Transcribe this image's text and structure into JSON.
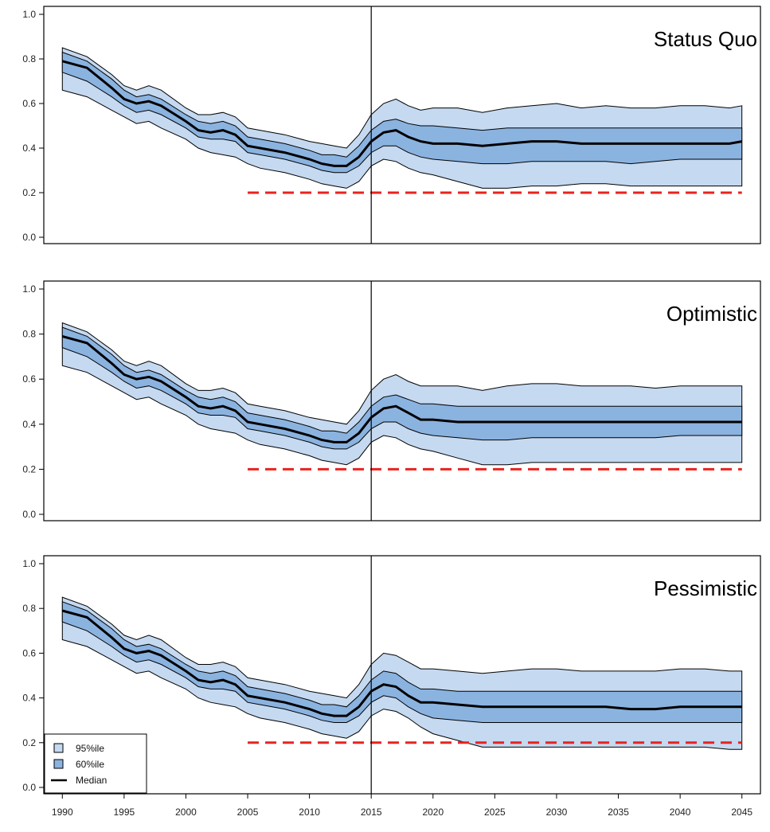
{
  "chart_data": [
    {
      "type": "area",
      "title": "Status Quo",
      "ylim": [
        0,
        1.0
      ],
      "xlim": [
        1988.5,
        2046.5
      ],
      "yticks": [
        "0.0",
        "0.2",
        "0.4",
        "0.6",
        "0.8",
        "1.0"
      ],
      "reference_year": 2015,
      "target": {
        "value": 0.2,
        "from": 2005,
        "to": 2045
      },
      "x": [
        1990,
        1992,
        1994,
        1995,
        1996,
        1997,
        1998,
        2000,
        2001,
        2002,
        2003,
        2004,
        2005,
        2006,
        2008,
        2010,
        2011,
        2012,
        2013,
        2014,
        2015,
        2016,
        2017,
        2018,
        2019,
        2020,
        2022,
        2024,
        2026,
        2028,
        2030,
        2032,
        2034,
        2036,
        2038,
        2040,
        2042,
        2044,
        2045
      ],
      "series": [
        {
          "name": "95%ile",
          "low": [
            0.66,
            0.63,
            0.57,
            0.54,
            0.51,
            0.52,
            0.49,
            0.44,
            0.4,
            0.38,
            0.37,
            0.36,
            0.33,
            0.31,
            0.29,
            0.26,
            0.24,
            0.23,
            0.22,
            0.25,
            0.32,
            0.35,
            0.34,
            0.31,
            0.29,
            0.28,
            0.25,
            0.22,
            0.22,
            0.23,
            0.23,
            0.24,
            0.24,
            0.23,
            0.23,
            0.23,
            0.23,
            0.23,
            0.23
          ],
          "high": [
            0.85,
            0.81,
            0.73,
            0.68,
            0.66,
            0.68,
            0.66,
            0.58,
            0.55,
            0.55,
            0.56,
            0.54,
            0.49,
            0.48,
            0.46,
            0.43,
            0.42,
            0.41,
            0.4,
            0.46,
            0.55,
            0.6,
            0.62,
            0.59,
            0.57,
            0.58,
            0.58,
            0.56,
            0.58,
            0.59,
            0.6,
            0.58,
            0.59,
            0.58,
            0.58,
            0.59,
            0.59,
            0.58,
            0.59
          ]
        },
        {
          "name": "60%ile",
          "low": [
            0.74,
            0.7,
            0.63,
            0.59,
            0.56,
            0.57,
            0.55,
            0.49,
            0.45,
            0.44,
            0.44,
            0.43,
            0.38,
            0.37,
            0.35,
            0.32,
            0.3,
            0.29,
            0.29,
            0.32,
            0.38,
            0.41,
            0.41,
            0.38,
            0.36,
            0.35,
            0.34,
            0.33,
            0.33,
            0.34,
            0.34,
            0.34,
            0.34,
            0.33,
            0.34,
            0.35,
            0.35,
            0.35,
            0.35
          ]
        },
        {
          "name": "Median",
          "values": [
            0.79,
            0.76,
            0.67,
            0.62,
            0.6,
            0.61,
            0.59,
            0.52,
            0.48,
            0.47,
            0.48,
            0.46,
            0.41,
            0.4,
            0.38,
            0.35,
            0.33,
            0.32,
            0.32,
            0.36,
            0.43,
            0.47,
            0.48,
            0.45,
            0.43,
            0.42,
            0.42,
            0.41,
            0.42,
            0.43,
            0.43,
            0.42,
            0.42,
            0.42,
            0.42,
            0.42,
            0.42,
            0.42,
            0.43
          ]
        }
      ],
      "band60_high": [
        0.83,
        0.79,
        0.71,
        0.66,
        0.63,
        0.64,
        0.62,
        0.55,
        0.52,
        0.51,
        0.52,
        0.5,
        0.45,
        0.44,
        0.42,
        0.39,
        0.37,
        0.37,
        0.36,
        0.41,
        0.48,
        0.52,
        0.53,
        0.51,
        0.5,
        0.5,
        0.49,
        0.48,
        0.49,
        0.49,
        0.49,
        0.49,
        0.49,
        0.49,
        0.49,
        0.49,
        0.49,
        0.49,
        0.49
      ]
    },
    {
      "type": "area",
      "title": "Optimistic",
      "ylim": [
        0,
        1.0
      ],
      "xlim": [
        1988.5,
        2046.5
      ],
      "yticks": [
        "0.0",
        "0.2",
        "0.4",
        "0.6",
        "0.8",
        "1.0"
      ],
      "reference_year": 2015,
      "target": {
        "value": 0.2,
        "from": 2005,
        "to": 2045
      },
      "x": [
        1990,
        1992,
        1994,
        1995,
        1996,
        1997,
        1998,
        2000,
        2001,
        2002,
        2003,
        2004,
        2005,
        2006,
        2008,
        2010,
        2011,
        2012,
        2013,
        2014,
        2015,
        2016,
        2017,
        2018,
        2019,
        2020,
        2022,
        2024,
        2026,
        2028,
        2030,
        2032,
        2034,
        2036,
        2038,
        2040,
        2042,
        2044,
        2045
      ],
      "series": [
        {
          "name": "95%ile",
          "low": [
            0.66,
            0.63,
            0.57,
            0.54,
            0.51,
            0.52,
            0.49,
            0.44,
            0.4,
            0.38,
            0.37,
            0.36,
            0.33,
            0.31,
            0.29,
            0.26,
            0.24,
            0.23,
            0.22,
            0.25,
            0.32,
            0.35,
            0.34,
            0.31,
            0.29,
            0.28,
            0.25,
            0.22,
            0.22,
            0.23,
            0.23,
            0.23,
            0.23,
            0.23,
            0.23,
            0.23,
            0.23,
            0.23,
            0.23
          ],
          "high": [
            0.85,
            0.81,
            0.73,
            0.68,
            0.66,
            0.68,
            0.66,
            0.58,
            0.55,
            0.55,
            0.56,
            0.54,
            0.49,
            0.48,
            0.46,
            0.43,
            0.42,
            0.41,
            0.4,
            0.46,
            0.55,
            0.6,
            0.62,
            0.59,
            0.57,
            0.57,
            0.57,
            0.55,
            0.57,
            0.58,
            0.58,
            0.57,
            0.57,
            0.57,
            0.56,
            0.57,
            0.57,
            0.57,
            0.57
          ]
        },
        {
          "name": "60%ile",
          "low": [
            0.74,
            0.7,
            0.63,
            0.59,
            0.56,
            0.57,
            0.55,
            0.49,
            0.45,
            0.44,
            0.44,
            0.43,
            0.38,
            0.37,
            0.35,
            0.32,
            0.3,
            0.29,
            0.29,
            0.32,
            0.38,
            0.41,
            0.41,
            0.38,
            0.36,
            0.35,
            0.34,
            0.33,
            0.33,
            0.34,
            0.34,
            0.34,
            0.34,
            0.34,
            0.34,
            0.35,
            0.35,
            0.35,
            0.35
          ]
        },
        {
          "name": "Median",
          "values": [
            0.79,
            0.76,
            0.67,
            0.62,
            0.6,
            0.61,
            0.59,
            0.52,
            0.48,
            0.47,
            0.48,
            0.46,
            0.41,
            0.4,
            0.38,
            0.35,
            0.33,
            0.32,
            0.32,
            0.36,
            0.43,
            0.47,
            0.48,
            0.45,
            0.42,
            0.42,
            0.41,
            0.41,
            0.41,
            0.41,
            0.41,
            0.41,
            0.41,
            0.41,
            0.41,
            0.41,
            0.41,
            0.41,
            0.41
          ]
        }
      ],
      "band60_high": [
        0.83,
        0.79,
        0.71,
        0.66,
        0.63,
        0.64,
        0.62,
        0.55,
        0.52,
        0.51,
        0.52,
        0.5,
        0.45,
        0.44,
        0.42,
        0.39,
        0.37,
        0.37,
        0.36,
        0.41,
        0.48,
        0.52,
        0.53,
        0.51,
        0.49,
        0.49,
        0.48,
        0.48,
        0.48,
        0.48,
        0.48,
        0.48,
        0.48,
        0.48,
        0.48,
        0.48,
        0.48,
        0.48,
        0.48
      ]
    },
    {
      "type": "area",
      "title": "Pessimistic",
      "ylim": [
        0,
        1.0
      ],
      "xlim": [
        1988.5,
        2046.5
      ],
      "yticks": [
        "0.0",
        "0.2",
        "0.4",
        "0.6",
        "0.8",
        "1.0"
      ],
      "xticks": [
        "1990",
        "1995",
        "2000",
        "2005",
        "2010",
        "2015",
        "2020",
        "2025",
        "2030",
        "2035",
        "2040",
        "2045"
      ],
      "reference_year": 2015,
      "target": {
        "value": 0.2,
        "from": 2005,
        "to": 2045
      },
      "x": [
        1990,
        1992,
        1994,
        1995,
        1996,
        1997,
        1998,
        2000,
        2001,
        2002,
        2003,
        2004,
        2005,
        2006,
        2008,
        2010,
        2011,
        2012,
        2013,
        2014,
        2015,
        2016,
        2017,
        2018,
        2019,
        2020,
        2022,
        2024,
        2026,
        2028,
        2030,
        2032,
        2034,
        2036,
        2038,
        2040,
        2042,
        2044,
        2045
      ],
      "series": [
        {
          "name": "95%ile",
          "low": [
            0.66,
            0.63,
            0.57,
            0.54,
            0.51,
            0.52,
            0.49,
            0.44,
            0.4,
            0.38,
            0.37,
            0.36,
            0.33,
            0.31,
            0.29,
            0.26,
            0.24,
            0.23,
            0.22,
            0.25,
            0.32,
            0.35,
            0.34,
            0.31,
            0.27,
            0.24,
            0.21,
            0.18,
            0.18,
            0.18,
            0.18,
            0.18,
            0.18,
            0.18,
            0.18,
            0.18,
            0.18,
            0.17,
            0.17
          ],
          "high": [
            0.85,
            0.81,
            0.73,
            0.68,
            0.66,
            0.68,
            0.66,
            0.58,
            0.55,
            0.55,
            0.56,
            0.54,
            0.49,
            0.48,
            0.46,
            0.43,
            0.42,
            0.41,
            0.4,
            0.46,
            0.55,
            0.6,
            0.59,
            0.56,
            0.53,
            0.53,
            0.52,
            0.51,
            0.52,
            0.53,
            0.53,
            0.52,
            0.52,
            0.52,
            0.52,
            0.53,
            0.53,
            0.52,
            0.52
          ]
        },
        {
          "name": "60%ile",
          "low": [
            0.74,
            0.7,
            0.63,
            0.59,
            0.56,
            0.57,
            0.55,
            0.49,
            0.45,
            0.44,
            0.44,
            0.43,
            0.38,
            0.37,
            0.35,
            0.32,
            0.3,
            0.29,
            0.29,
            0.32,
            0.38,
            0.41,
            0.4,
            0.36,
            0.33,
            0.31,
            0.3,
            0.29,
            0.29,
            0.29,
            0.29,
            0.29,
            0.29,
            0.29,
            0.29,
            0.29,
            0.29,
            0.29,
            0.29
          ]
        },
        {
          "name": "Median",
          "values": [
            0.79,
            0.76,
            0.67,
            0.62,
            0.6,
            0.61,
            0.59,
            0.52,
            0.48,
            0.47,
            0.48,
            0.46,
            0.41,
            0.4,
            0.38,
            0.35,
            0.33,
            0.32,
            0.32,
            0.36,
            0.43,
            0.46,
            0.45,
            0.41,
            0.38,
            0.38,
            0.37,
            0.36,
            0.36,
            0.36,
            0.36,
            0.36,
            0.36,
            0.35,
            0.35,
            0.36,
            0.36,
            0.36,
            0.36
          ]
        }
      ],
      "band60_high": [
        0.83,
        0.79,
        0.71,
        0.66,
        0.63,
        0.64,
        0.62,
        0.55,
        0.52,
        0.51,
        0.52,
        0.5,
        0.45,
        0.44,
        0.42,
        0.39,
        0.37,
        0.37,
        0.36,
        0.41,
        0.48,
        0.52,
        0.51,
        0.47,
        0.44,
        0.44,
        0.43,
        0.43,
        0.43,
        0.43,
        0.43,
        0.43,
        0.43,
        0.43,
        0.43,
        0.43,
        0.43,
        0.43,
        0.43
      ]
    }
  ],
  "legend": {
    "items": [
      {
        "label": "95%ile",
        "kind": "box",
        "color": "#c5d9f0"
      },
      {
        "label": "60%ile",
        "kind": "box",
        "color": "#8bb3e0"
      },
      {
        "label": "Median",
        "kind": "line",
        "color": "#000000"
      }
    ]
  },
  "colors": {
    "band95": "#c5d9f0",
    "band60": "#8bb3e0",
    "median": "#000000",
    "target": "#e8231f",
    "frame": "#000000"
  }
}
